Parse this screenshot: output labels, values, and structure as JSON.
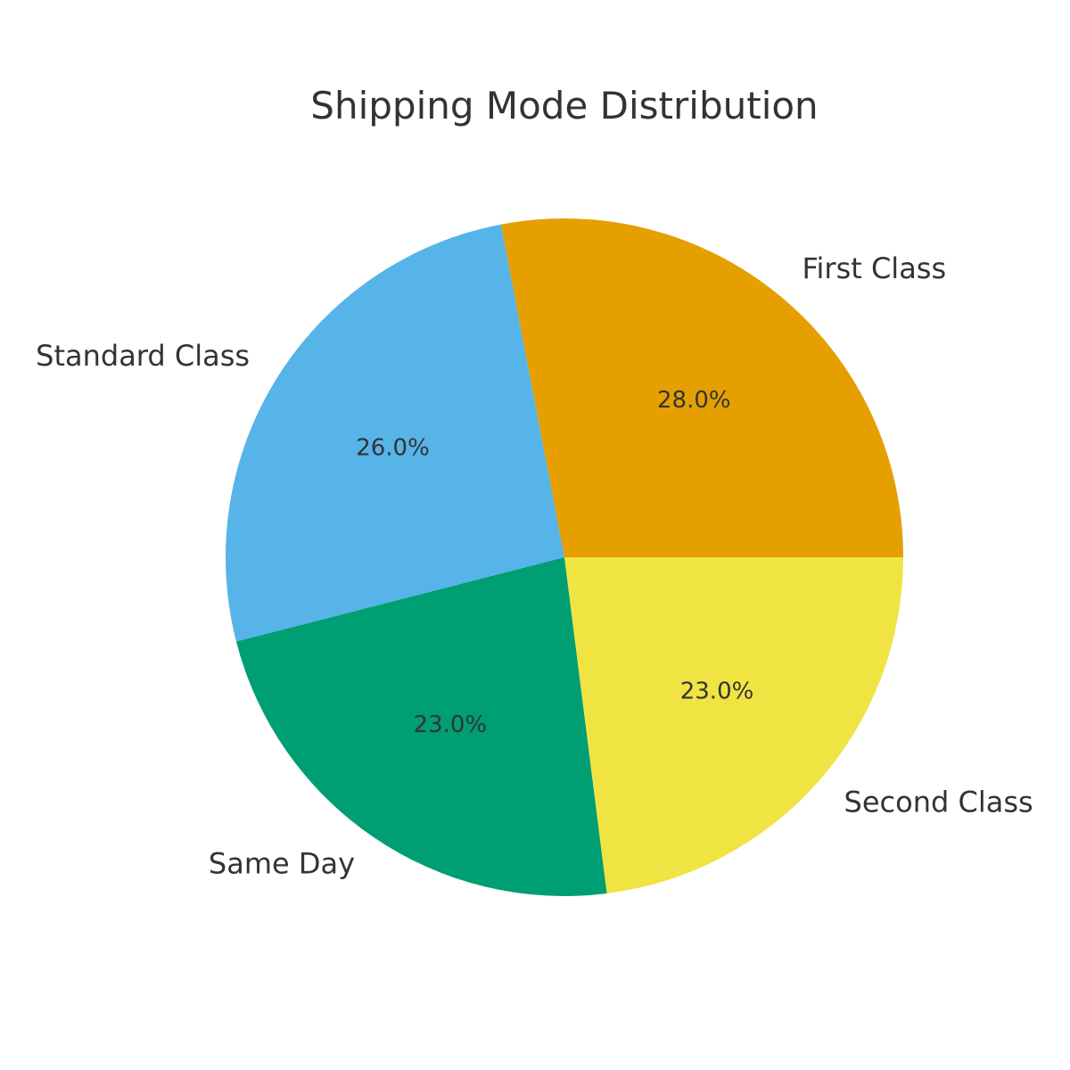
{
  "chart_data": {
    "type": "pie",
    "title": "Shipping Mode Distribution",
    "start_angle_deg": 0,
    "direction": "counterclockwise",
    "slices": [
      {
        "label": "First Class",
        "value": 28.0,
        "percent_label": "28.0%",
        "color": "#E69F00"
      },
      {
        "label": "Standard Class",
        "value": 26.0,
        "percent_label": "26.0%",
        "color": "#56B4E9"
      },
      {
        "label": "Same Day",
        "value": 23.0,
        "percent_label": "23.0%",
        "color": "#009E73"
      },
      {
        "label": "Second Class",
        "value": 23.0,
        "percent_label": "23.0%",
        "color": "#F0E442"
      }
    ]
  }
}
